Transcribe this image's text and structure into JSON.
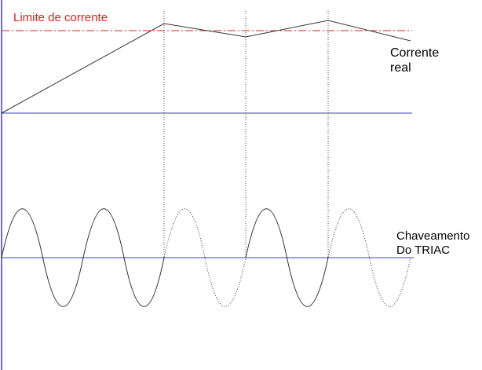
{
  "labels": {
    "current_limit": "Limite de corrente",
    "real_current_line1": "Corrente",
    "real_current_line2": "real",
    "triac_line1": "Chaveamento",
    "triac_line2": "Do TRIAC"
  },
  "colors": {
    "limit": "#e02020",
    "axis": "#3b3bd6",
    "trace": "#333333",
    "switching_guide": "#444444"
  },
  "waveform": {
    "full_cycles": 5,
    "conducting_cycles": [
      true,
      true,
      false,
      true,
      false
    ],
    "switching_events": 3
  }
}
